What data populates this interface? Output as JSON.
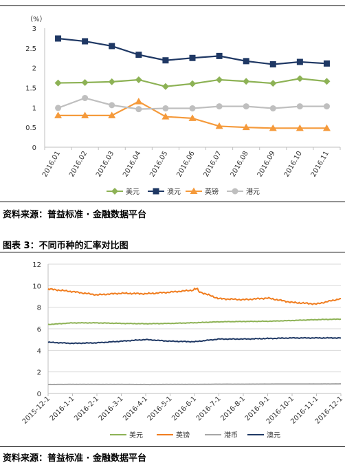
{
  "source_text_1": "资料来源：普益标准 · 金融数据平台",
  "figure3_caption": "图表 3：不同币种的汇率对比图",
  "source_text_2": "资料来源：普益标准 · 金融数据平台",
  "chart_data": [
    {
      "type": "line",
      "unit_label": "（%）",
      "categories": [
        "2016.01",
        "2016.02",
        "2016.03",
        "2016.04",
        "2016.05",
        "2016.06",
        "2016.07",
        "2016.08",
        "2016.09",
        "2016.10",
        "2016.11"
      ],
      "ylim": [
        0,
        3
      ],
      "yticks": [
        "0",
        "0.5",
        "1",
        "1.5",
        "2",
        "2.5",
        "3"
      ],
      "grid": false,
      "legend_position": "bottom",
      "series": [
        {
          "name": "美元",
          "color": "#8db255",
          "marker": "diamond",
          "values": [
            1.62,
            1.63,
            1.65,
            1.7,
            1.53,
            1.6,
            1.7,
            1.66,
            1.61,
            1.73,
            1.66
          ]
        },
        {
          "name": "澳元",
          "color": "#1f3864",
          "marker": "square",
          "values": [
            2.74,
            2.67,
            2.55,
            2.33,
            2.19,
            2.25,
            2.3,
            2.17,
            2.09,
            2.15,
            2.11
          ]
        },
        {
          "name": "英镑",
          "color": "#f59a3b",
          "marker": "triangle",
          "values": [
            0.8,
            0.8,
            0.8,
            1.15,
            0.77,
            0.73,
            0.53,
            0.5,
            0.48,
            0.48,
            0.48
          ]
        },
        {
          "name": "港元",
          "color": "#bfbfbf",
          "marker": "circle",
          "values": [
            0.99,
            1.24,
            1.06,
            0.96,
            0.98,
            0.98,
            1.03,
            1.03,
            0.98,
            1.03,
            1.03
          ]
        }
      ]
    },
    {
      "type": "line",
      "title": "不同币种的汇率对比图",
      "categories": [
        "2015-12-1",
        "2016-1-1",
        "2016-2-1",
        "2016-3-1",
        "2016-4-1",
        "2016-5-1",
        "2016-6-1",
        "2016-7-1",
        "2016-8-1",
        "2016-9-1",
        "2016-10-1",
        "2016-11-1",
        "2016-12-1"
      ],
      "ylim": [
        0,
        12
      ],
      "yticks": [
        "0",
        "2",
        "4",
        "6",
        "8",
        "10",
        "12"
      ],
      "grid": true,
      "legend_position": "bottom",
      "series": [
        {
          "name": "美元",
          "color": "#8db255",
          "values": [
            6.4,
            6.55,
            6.55,
            6.5,
            6.47,
            6.5,
            6.56,
            6.65,
            6.68,
            6.7,
            6.77,
            6.85,
            6.9
          ]
        },
        {
          "name": "英镑",
          "color": "#f07d1f",
          "values": [
            9.7,
            9.45,
            9.15,
            9.3,
            9.25,
            9.4,
            9.6,
            8.8,
            8.7,
            8.85,
            8.45,
            8.3,
            8.8
          ]
        },
        {
          "name": "港币",
          "color": "#a6a6a6",
          "values": [
            0.83,
            0.84,
            0.84,
            0.84,
            0.83,
            0.84,
            0.84,
            0.86,
            0.86,
            0.87,
            0.88,
            0.88,
            0.89
          ]
        },
        {
          "name": "澳元",
          "color": "#1f3864",
          "values": [
            4.75,
            4.65,
            4.7,
            4.85,
            5.0,
            4.85,
            4.8,
            5.05,
            5.05,
            5.1,
            5.15,
            5.15,
            5.15
          ]
        }
      ]
    }
  ]
}
